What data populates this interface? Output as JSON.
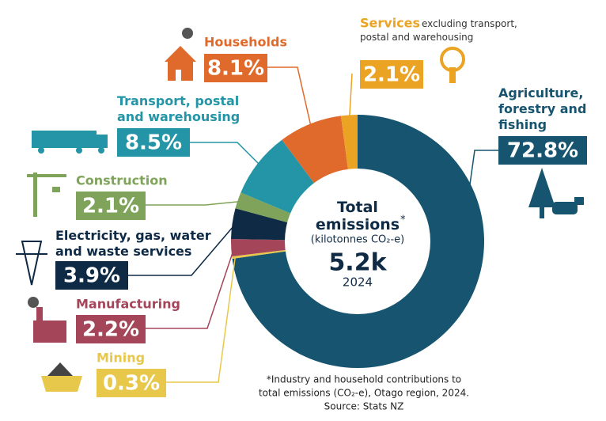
{
  "chart_data": {
    "type": "pie",
    "categories": [
      "Agriculture, forestry and fishing",
      "Mining",
      "Manufacturing",
      "Electricity, gas, water and waste services",
      "Construction",
      "Transport, postal and warehousing",
      "Households",
      "Services"
    ],
    "values": [
      72.8,
      0.3,
      2.2,
      3.9,
      2.1,
      8.5,
      8.1,
      2.1
    ],
    "value_labels": [
      "72.8%",
      "0.3%",
      "2.2%",
      "3.9%",
      "2.1%",
      "8.5%",
      "8.1%",
      "2.1%"
    ],
    "colors": [
      "#17546f",
      "#e8c84a",
      "#a5455a",
      "#0f2a45",
      "#7fa35a",
      "#2395a6",
      "#e06a2b",
      "#eba324"
    ],
    "services_note": "excluding transport, postal and warehousing",
    "center": {
      "title": "Total emissions",
      "marker": "*",
      "unit": "(kilotonnes CO₂-e)",
      "total": "5.2k",
      "year": "2024"
    },
    "footnote": [
      "*Industry and household contributions to",
      "total emissions (CO₂-e), Otago region, 2024.",
      "Source: Stats NZ"
    ]
  }
}
